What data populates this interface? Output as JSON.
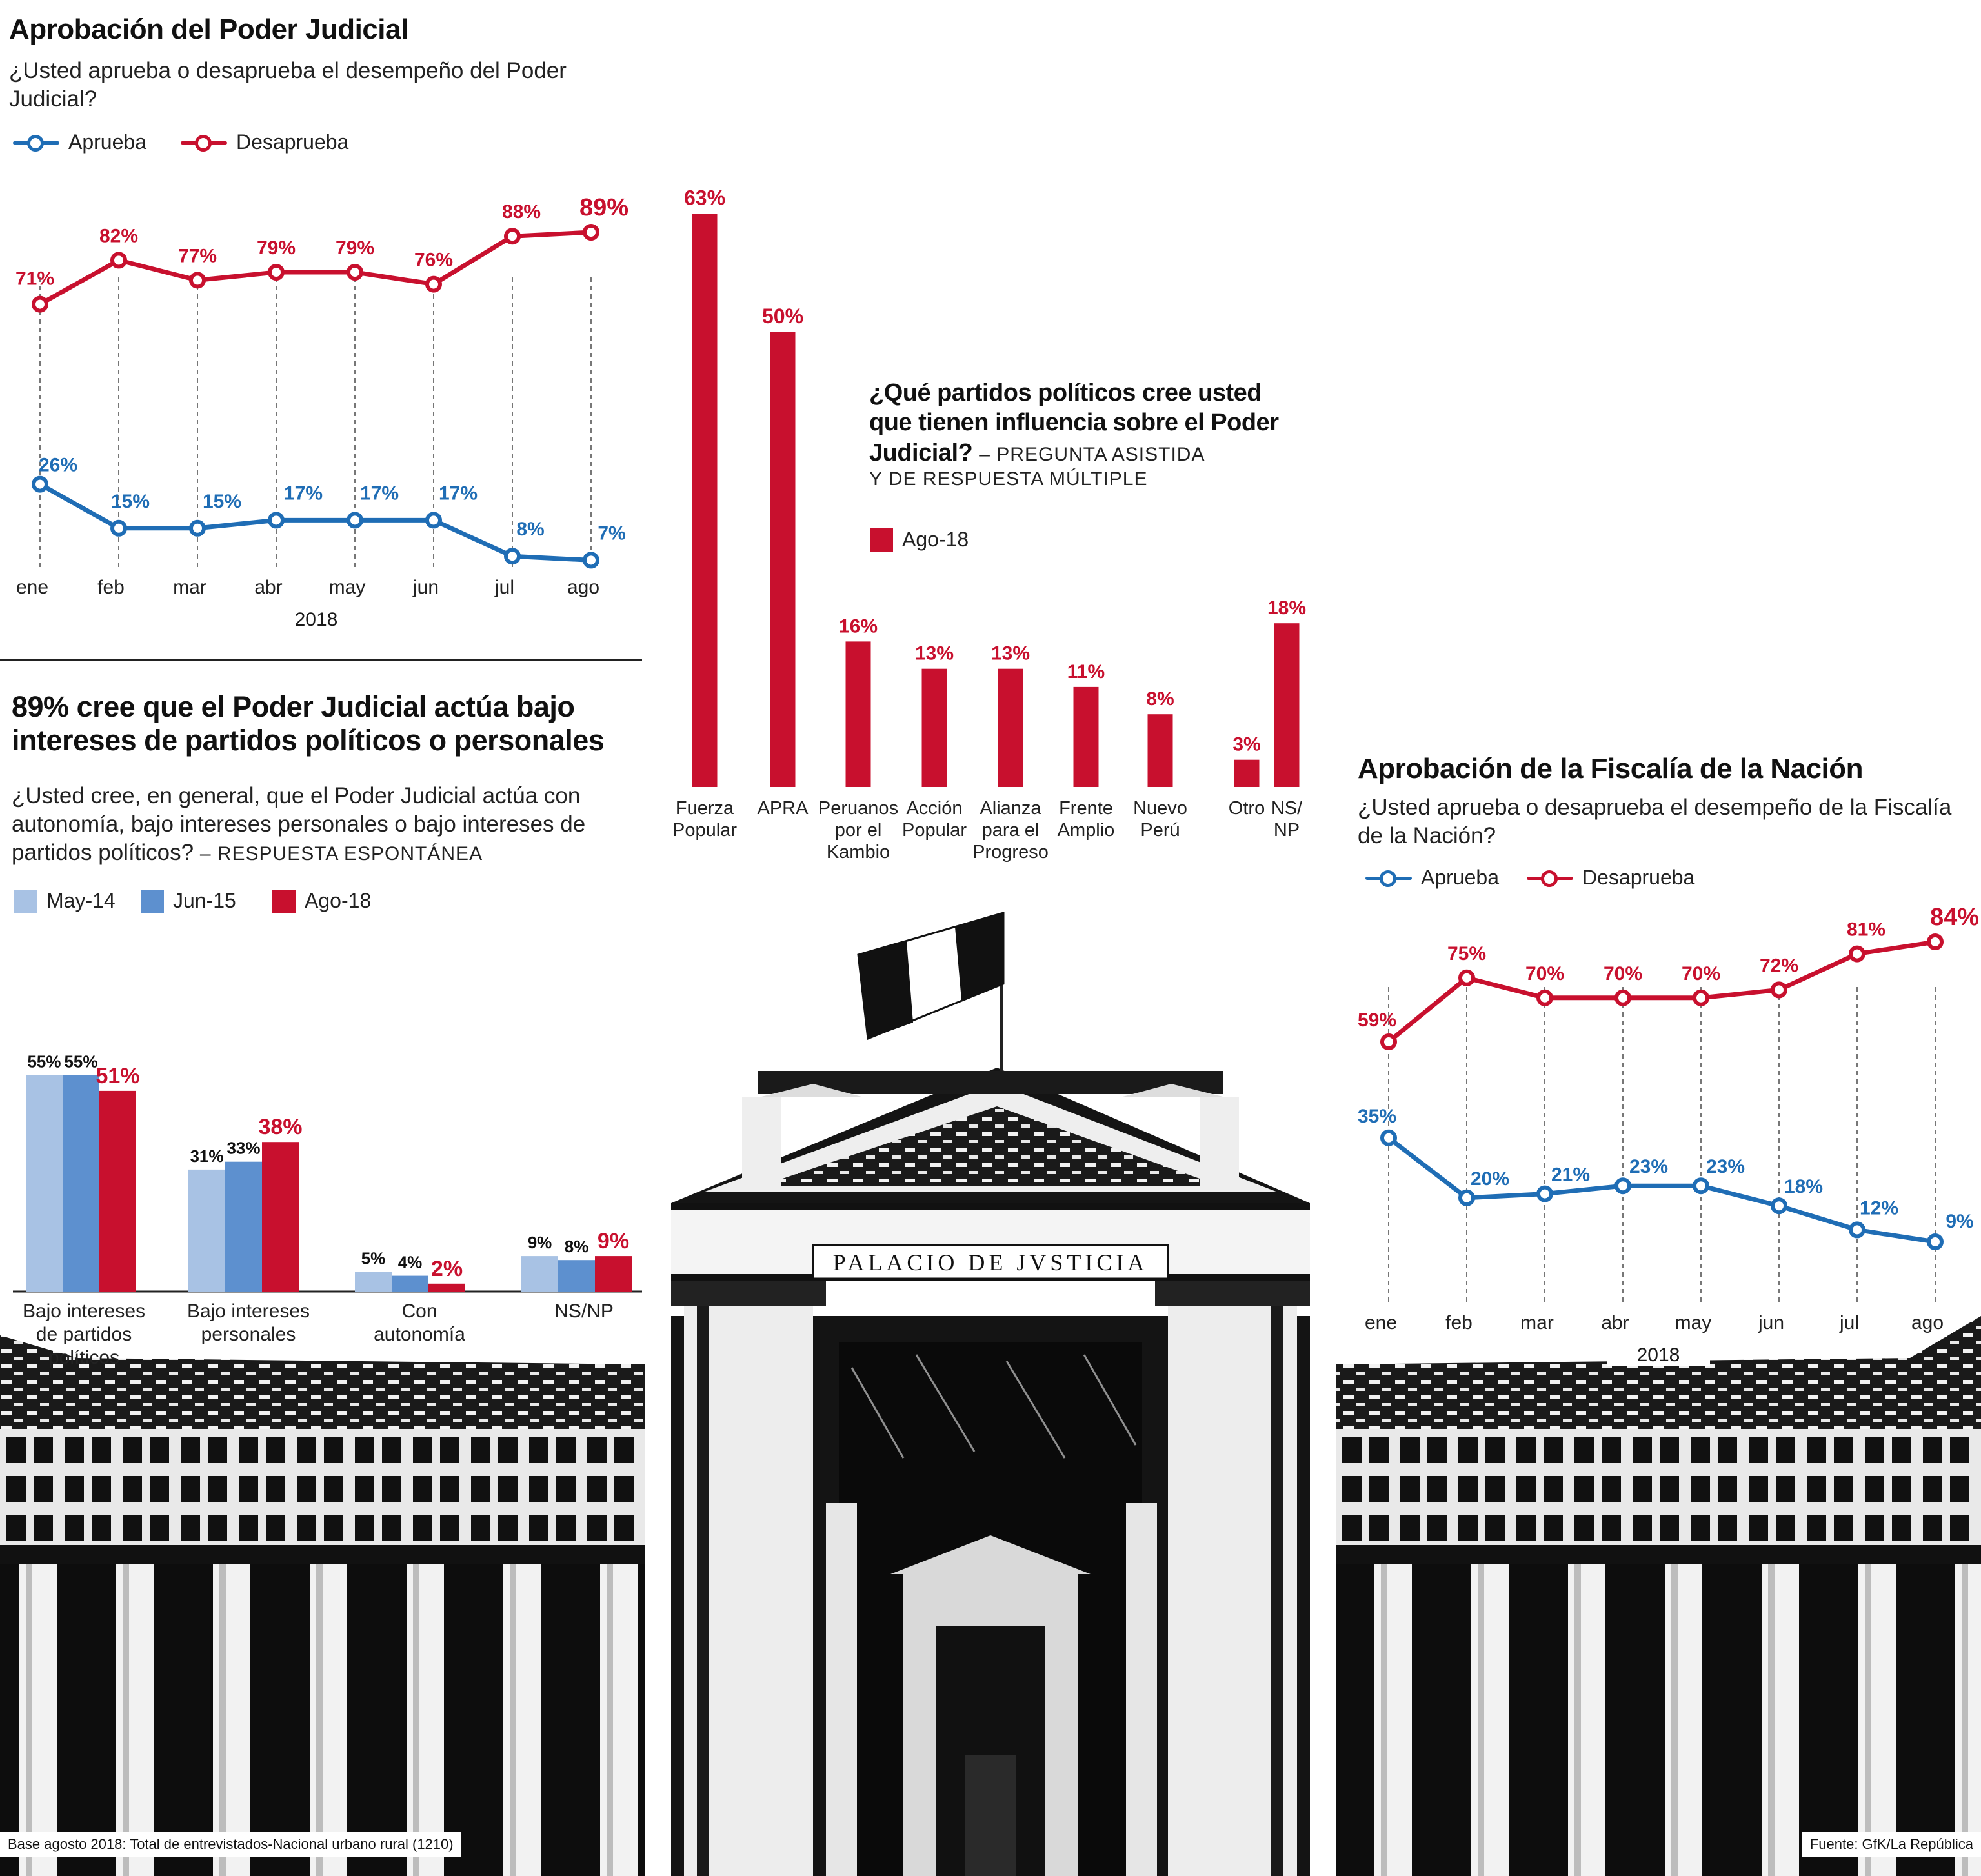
{
  "colors": {
    "red": "#c8102e",
    "blue": "#1f6db5",
    "light_blue": "#a8c2e4",
    "mid_blue": "#5d90cf",
    "building": "#111111"
  },
  "pj_approval": {
    "title": "Aprobación del Poder Judicial",
    "subtitle": "¿Usted aprueba o desaprueba el desempeño del Poder Judicial?",
    "legend": [
      "Aprueba",
      "Desaprueba"
    ],
    "year_label": "2018"
  },
  "parties": {
    "title": "¿Qué partidos políticos cree usted que tienen influencia sobre el Poder Judicial?",
    "note_part1": "– PREGUNTA ASISTIDA",
    "note_part2": "Y DE RESPUESTA MÚLTIPLE",
    "legend": "Ago-18"
  },
  "interests": {
    "title": "89% cree que el Poder Judicial actúa bajo intereses de partidos políticos o personales",
    "subtitle": "¿Usted cree, en general, que el Poder Judicial actúa con autonomía, bajo intereses personales o bajo intereses de partidos políticos?",
    "subtitle_note": "– RESPUESTA ESPONTÁNEA",
    "legend": [
      "May-14",
      "Jun-15",
      "Ago-18"
    ]
  },
  "fiscalia": {
    "title": "Aprobación de la Fiscalía de la Nación",
    "subtitle": "¿Usted aprueba o desaprueba el desempeño de la Fiscalía de la Nación?",
    "legend": [
      "Aprueba",
      "Desaprueba"
    ],
    "year_label": "2018"
  },
  "building": {
    "inscription": "PALACIO DE JVSTICIA"
  },
  "footer": {
    "base": "Base agosto 2018: Total de entrevistados-Nacional urbano rural (1210)",
    "source": "Fuente: GfK/La República"
  },
  "chart_data": [
    {
      "id": "pj_approval",
      "type": "line",
      "title": "Aprobación del Poder Judicial",
      "x": [
        "ene",
        "feb",
        "mar",
        "abr",
        "may",
        "jun",
        "jul",
        "ago"
      ],
      "xlabel": "2018",
      "series": [
        {
          "name": "Aprueba",
          "values": [
            26,
            15,
            15,
            17,
            17,
            17,
            8,
            7
          ]
        },
        {
          "name": "Desaprueba",
          "values": [
            71,
            82,
            77,
            79,
            79,
            76,
            88,
            89
          ]
        }
      ],
      "unit": "%",
      "legend": "top-left"
    },
    {
      "id": "parties",
      "type": "bar",
      "title": "¿Qué partidos políticos cree usted que tienen influencia sobre el Poder Judicial?",
      "categories": [
        "Fuerza Popular",
        "APRA",
        "Peruanos por el Kambio",
        "Acción Popular",
        "Alianza para el Progreso",
        "Frente Amplio",
        "Nuevo Perú",
        "Otro",
        "NS/NP"
      ],
      "category_lines": [
        [
          "Fuerza",
          "Popular"
        ],
        [
          "APRA"
        ],
        [
          "Peruanos",
          "por el",
          "Kambio"
        ],
        [
          "Acción",
          "Popular"
        ],
        [
          "Alianza",
          "para el",
          "Progreso"
        ],
        [
          "Frente",
          "Amplio"
        ],
        [
          "Nuevo",
          "Perú"
        ],
        [
          "Otro"
        ],
        [
          "NS/",
          "NP"
        ]
      ],
      "series": [
        {
          "name": "Ago-18",
          "values": [
            63,
            50,
            16,
            13,
            13,
            11,
            8,
            3,
            18
          ]
        }
      ],
      "unit": "%"
    },
    {
      "id": "interests",
      "type": "bar",
      "title": "89% cree que el Poder Judicial actúa bajo intereses de partidos políticos o personales",
      "categories": [
        "Bajo intereses de partidos políticos",
        "Bajo intereses personales",
        "Con autonomía",
        "NS/NP"
      ],
      "category_lines": [
        [
          "Bajo intereses",
          "de partidos",
          "políticos"
        ],
        [
          "Bajo intereses",
          "personales"
        ],
        [
          "Con",
          "autonomía"
        ],
        [
          "NS/NP"
        ]
      ],
      "series": [
        {
          "name": "May-14",
          "values": [
            55,
            31,
            5,
            9
          ]
        },
        {
          "name": "Jun-15",
          "values": [
            55,
            33,
            4,
            8
          ]
        },
        {
          "name": "Ago-18",
          "values": [
            51,
            38,
            2,
            9
          ]
        }
      ],
      "unit": "%"
    },
    {
      "id": "fiscalia",
      "type": "line",
      "title": "Aprobación de la Fiscalía de la Nación",
      "x": [
        "ene",
        "feb",
        "mar",
        "abr",
        "may",
        "jun",
        "jul",
        "ago"
      ],
      "xlabel": "2018",
      "series": [
        {
          "name": "Aprueba",
          "values": [
            35,
            20,
            21,
            23,
            23,
            18,
            12,
            9
          ]
        },
        {
          "name": "Desaprueba",
          "values": [
            59,
            75,
            70,
            70,
            70,
            72,
            81,
            84
          ]
        }
      ],
      "unit": "%",
      "legend": "top-left"
    }
  ]
}
